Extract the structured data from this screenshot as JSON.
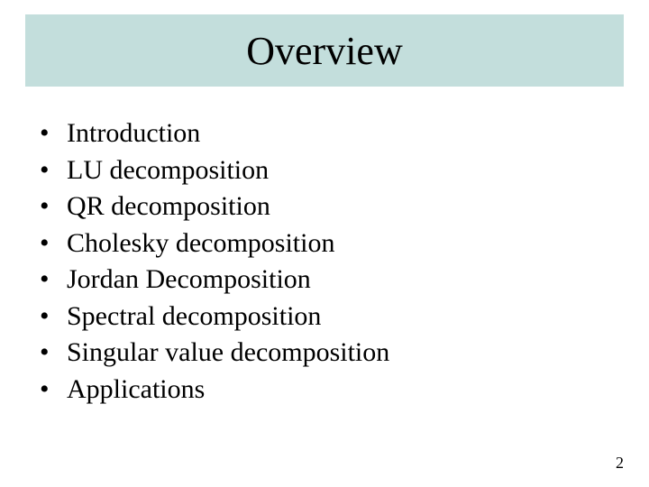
{
  "slide": {
    "title": "Overview",
    "title_bar_color": "#c3dedc",
    "title_fontsize": 44,
    "body_fontsize": 30,
    "text_color": "#000000",
    "background_color": "#ffffff",
    "bullets": [
      "Introduction",
      "LU decomposition",
      "QR decomposition",
      "Cholesky decomposition",
      "Jordan Decomposition",
      "Spectral decomposition",
      "Singular value decomposition",
      "Applications"
    ],
    "bullet_char": "•",
    "page_number": "2",
    "page_number_fontsize": 18
  }
}
